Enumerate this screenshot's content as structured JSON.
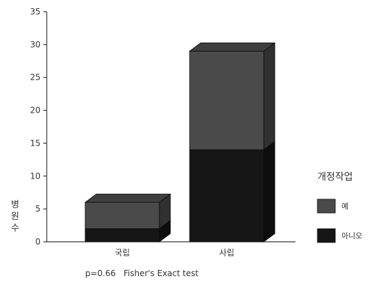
{
  "chart_data": {
    "type": "bar",
    "stacked": true,
    "categories": [
      "국립",
      "사립"
    ],
    "series": [
      {
        "name": "아니오",
        "values": [
          2,
          14
        ],
        "color": "#161616"
      },
      {
        "name": "예",
        "values": [
          4,
          15
        ],
        "color": "#4a4a4a"
      }
    ],
    "ylabel": "병원수",
    "xlabel": "",
    "ylim": [
      0,
      35
    ],
    "yticks": [
      0,
      5,
      10,
      15,
      20,
      25,
      30,
      35
    ],
    "legend": {
      "title": "개정작업",
      "placement": "right"
    },
    "annotation": "p=0.66   Fisher's Exact test",
    "style": "3d-stacked-bars",
    "grid": false
  }
}
